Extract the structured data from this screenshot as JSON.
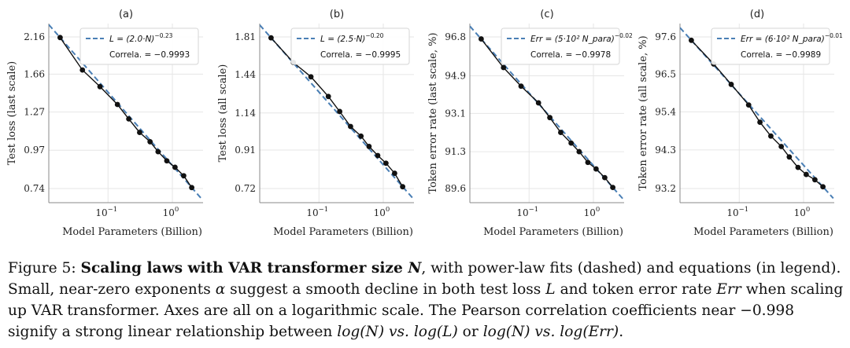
{
  "chart_data": [
    {
      "type": "scatter",
      "panel_label": "(a)",
      "ylabel": "Test loss (last scale)",
      "xlabel": "Model Parameters (Billion)",
      "xscale": "log",
      "xlim": [
        0.012,
        3.0
      ],
      "yticks": [
        {
          "label": "2.16",
          "v": 2.16
        },
        {
          "label": "1.66",
          "v": 1.66
        },
        {
          "label": "1.27",
          "v": 1.27
        },
        {
          "label": "0.97",
          "v": 0.97
        },
        {
          "label": "0.74",
          "v": 0.74
        }
      ],
      "xticks": [
        {
          "base": "10",
          "exp": "−1",
          "v": 0.1
        },
        {
          "base": "10",
          "exp": "0",
          "v": 1.0
        }
      ],
      "x": [
        0.018,
        0.04,
        0.075,
        0.14,
        0.21,
        0.31,
        0.45,
        0.6,
        0.82,
        1.1,
        1.5,
        2.0
      ],
      "y": [
        2.15,
        1.71,
        1.52,
        1.34,
        1.21,
        1.1,
        1.03,
        0.96,
        0.9,
        0.86,
        0.81,
        0.745
      ],
      "fit": {
        "a": 2.0,
        "alpha": -0.23,
        "x_range": [
          0.012,
          2.9
        ]
      },
      "legend": {
        "fit_label": "L = (2.0·N)",
        "fit_exp": "−0.23",
        "corr_label": "Correla. = −0.9993",
        "position": "top-right"
      }
    },
    {
      "type": "scatter",
      "panel_label": "(b)",
      "ylabel": "Test loss (all scale)",
      "xlabel": "Model Parameters (Billion)",
      "xscale": "log",
      "xlim": [
        0.012,
        3.0
      ],
      "yticks": [
        {
          "label": "1.81",
          "v": 1.81
        },
        {
          "label": "1.44",
          "v": 1.44
        },
        {
          "label": "1.14",
          "v": 1.14
        },
        {
          "label": "0.91",
          "v": 0.91
        },
        {
          "label": "0.72",
          "v": 0.72
        }
      ],
      "xticks": [
        {
          "base": "10",
          "exp": "−1",
          "v": 0.1
        },
        {
          "base": "10",
          "exp": "0",
          "v": 1.0
        }
      ],
      "x": [
        0.018,
        0.04,
        0.075,
        0.14,
        0.21,
        0.31,
        0.45,
        0.6,
        0.82,
        1.1,
        1.5,
        2.0
      ],
      "y": [
        1.8,
        1.55,
        1.42,
        1.26,
        1.15,
        1.05,
        0.99,
        0.93,
        0.88,
        0.84,
        0.79,
        0.728
      ],
      "fit": {
        "a": 2.5,
        "alpha": -0.2,
        "x_range": [
          0.012,
          2.9
        ]
      },
      "legend": {
        "fit_label": "L = (2.5·N)",
        "fit_exp": "−0.20",
        "corr_label": "Correla. = −0.9995",
        "position": "top-right"
      }
    },
    {
      "type": "scatter",
      "panel_label": "(c)",
      "ylabel": "Token error rate (last scale, %)",
      "xlabel": "Model Parameters (Billion)",
      "xscale": "log",
      "xlim": [
        0.012,
        3.0
      ],
      "yticks": [
        {
          "label": "96.8",
          "v": 96.8
        },
        {
          "label": "94.9",
          "v": 94.9
        },
        {
          "label": "93.1",
          "v": 93.1
        },
        {
          "label": "91.3",
          "v": 91.3
        },
        {
          "label": "89.6",
          "v": 89.6
        }
      ],
      "xticks": [
        {
          "base": "10",
          "exp": "−1",
          "v": 0.1
        },
        {
          "base": "10",
          "exp": "0",
          "v": 1.0
        }
      ],
      "x": [
        0.018,
        0.04,
        0.075,
        0.14,
        0.21,
        0.31,
        0.45,
        0.6,
        0.82,
        1.1,
        1.5,
        2.0
      ],
      "y": [
        96.7,
        95.3,
        94.4,
        93.6,
        92.9,
        92.2,
        91.7,
        91.3,
        90.8,
        90.5,
        90.1,
        89.65
      ],
      "fit": {
        "a": 500,
        "alpha": -0.02,
        "x_range": [
          0.012,
          2.9
        ]
      },
      "legend": {
        "fit_label": "Err = (5·10² N_para)",
        "fit_exp": "−0.02",
        "corr_label": "Correla. = −0.9978",
        "position": "top-right"
      }
    },
    {
      "type": "scatter",
      "panel_label": "(d)",
      "ylabel": "Token error rate (all scale, %)",
      "xlabel": "Model Parameters (Billion)",
      "xscale": "log",
      "xlim": [
        0.012,
        3.0
      ],
      "yticks": [
        {
          "label": "97.6",
          "v": 97.6
        },
        {
          "label": "96.5",
          "v": 96.5
        },
        {
          "label": "95.4",
          "v": 95.4
        },
        {
          "label": "94.3",
          "v": 94.3
        },
        {
          "label": "93.2",
          "v": 93.2
        }
      ],
      "xticks": [
        {
          "base": "10",
          "exp": "−1",
          "v": 0.1
        },
        {
          "base": "10",
          "exp": "0",
          "v": 1.0
        }
      ],
      "x": [
        0.018,
        0.04,
        0.075,
        0.14,
        0.21,
        0.31,
        0.45,
        0.6,
        0.82,
        1.1,
        1.5,
        2.0
      ],
      "y": [
        97.5,
        96.8,
        96.2,
        95.6,
        95.1,
        94.7,
        94.4,
        94.1,
        93.8,
        93.6,
        93.45,
        93.25
      ],
      "fit": {
        "a": 600,
        "alpha": -0.01,
        "x_range": [
          0.012,
          2.9
        ]
      },
      "legend": {
        "fit_label": "Err = (6·10² N_para)",
        "fit_exp": "−0.01",
        "corr_label": "Correla. = −0.9989",
        "position": "top-right"
      }
    }
  ],
  "caption": {
    "label": "Figure 5:",
    "bold": "Scaling laws with VAR transformer size",
    "var_n": "N",
    "text1": ", with power-law fits (dashed) and equations (in legend). Small, near-zero exponents",
    "alpha": "α",
    "text2": "suggest a smooth decline in both test loss",
    "var_l": "L",
    "text3": "and token error rate",
    "var_err": "Err",
    "text4": "when scaling up VAR transformer. Axes are all on a logarithmic scale. The Pearson correlation coefficients near −0.998 signify a strong linear relationship between",
    "eq1": "log(N) vs. log(L)",
    "or": "or",
    "eq2": "log(N) vs. log(Err)",
    "end": "."
  },
  "colors": {
    "fit": "#4a7fb5",
    "points": "#111111",
    "grid": "#e6e6e6",
    "frame": "#888888"
  }
}
